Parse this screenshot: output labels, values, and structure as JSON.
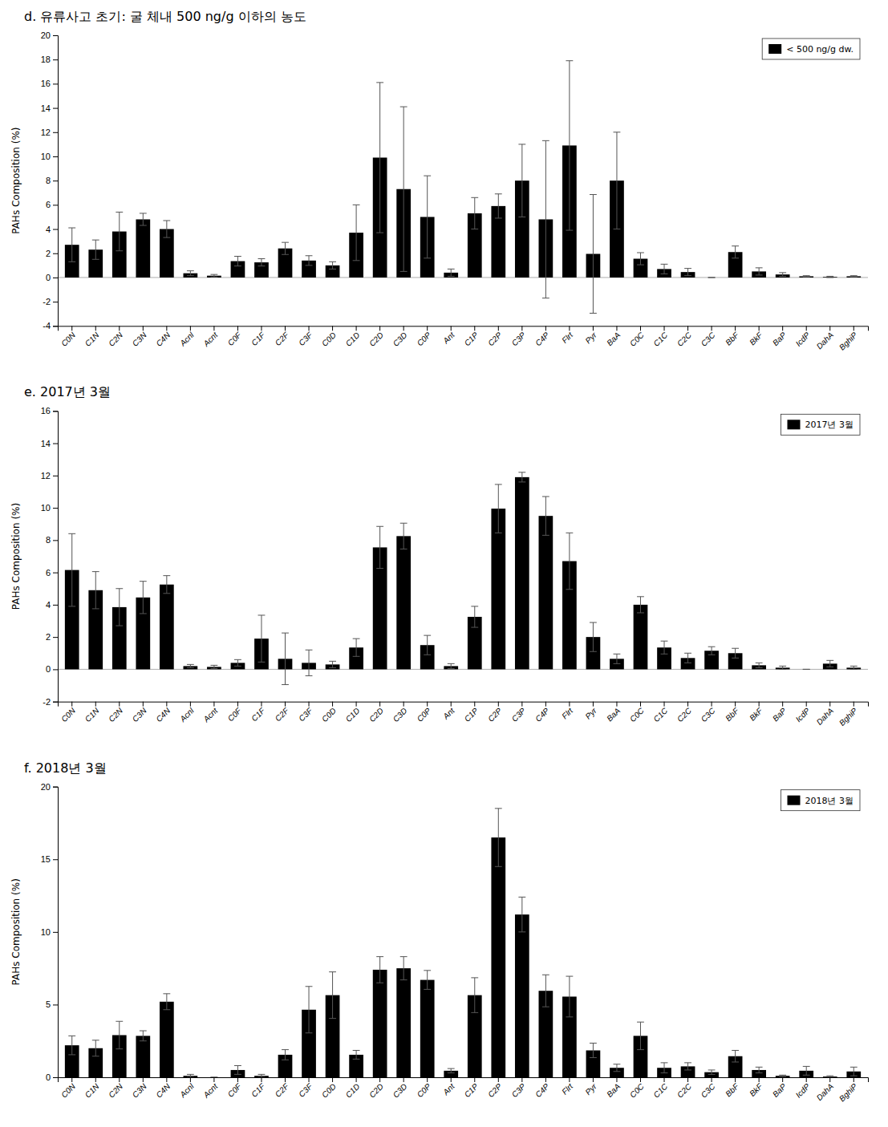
{
  "chart_data": [
    {
      "type": "bar",
      "title": "d. 유류사고 초기: 굴 체내 500 ng/g 이하의 농도",
      "ylabel": "PAHs Composition (%)",
      "categories": [
        "C0N",
        "C1N",
        "C2N",
        "C3N",
        "C4N",
        "Acnl",
        "Acnt",
        "C0F",
        "C1F",
        "C2F",
        "C3F",
        "C0D",
        "C1D",
        "C2D",
        "C3D",
        "C0P",
        "Ant",
        "C1P",
        "C2P",
        "C3P",
        "C4P",
        "Flrt",
        "Pyr",
        "BaA",
        "C0C",
        "C1C",
        "C2C",
        "C3C",
        "BbF",
        "BkF",
        "BaP",
        "IcdP",
        "DahA",
        "BghiP"
      ],
      "series": [
        {
          "name": "< 500 ng/g dw.",
          "color": "#000000",
          "values": [
            2.7,
            2.3,
            3.8,
            4.8,
            4.0,
            0.35,
            0.15,
            1.35,
            1.25,
            2.4,
            1.4,
            1.0,
            3.7,
            9.9,
            7.3,
            5.0,
            0.4,
            5.3,
            5.9,
            8.0,
            4.8,
            10.9,
            1.95,
            8.0,
            1.55,
            0.7,
            0.45,
            0.0,
            2.1,
            0.5,
            0.25,
            0.1,
            0.05,
            0.1
          ],
          "errors": [
            1.4,
            0.8,
            1.6,
            0.5,
            0.7,
            0.2,
            0.1,
            0.4,
            0.3,
            0.5,
            0.4,
            0.3,
            2.3,
            6.2,
            6.8,
            3.4,
            0.3,
            1.3,
            1.0,
            3.0,
            6.5,
            7.0,
            4.9,
            4.0,
            0.5,
            0.4,
            0.3,
            0.0,
            0.5,
            0.3,
            0.15,
            0.05,
            0.05,
            0.05
          ]
        }
      ],
      "ylim": [
        -4,
        20
      ],
      "yticks": [
        -4,
        -2,
        0,
        2,
        4,
        6,
        8,
        10,
        12,
        14,
        16,
        18,
        20
      ],
      "legend": "upper right",
      "grid": false
    },
    {
      "type": "bar",
      "title": "e. 2017년 3월",
      "ylabel": "PAHs Composition (%)",
      "categories": [
        "C0N",
        "C1N",
        "C2N",
        "C3N",
        "C4N",
        "Acnl",
        "Acnt",
        "C0F",
        "C1F",
        "C2F",
        "C3F",
        "C0D",
        "C1D",
        "C2D",
        "C3D",
        "C0P",
        "Ant",
        "C1P",
        "C2P",
        "C3P",
        "C4P",
        "Flrt",
        "Pyr",
        "BaA",
        "C0C",
        "C1C",
        "C2C",
        "C3C",
        "BbF",
        "BkF",
        "BaP",
        "IcdP",
        "DahA",
        "BghiP"
      ],
      "series": [
        {
          "name": "2017년 3월",
          "color": "#000000",
          "values": [
            6.15,
            4.9,
            3.85,
            4.45,
            5.25,
            0.2,
            0.15,
            0.4,
            1.9,
            0.65,
            0.4,
            0.3,
            1.35,
            7.55,
            8.25,
            1.5,
            0.2,
            3.25,
            9.95,
            11.9,
            9.5,
            6.7,
            2.0,
            0.65,
            4.0,
            1.35,
            0.7,
            1.15,
            1.0,
            0.25,
            0.1,
            0.0,
            0.35,
            0.1
          ],
          "errors": [
            2.25,
            1.15,
            1.15,
            1.0,
            0.55,
            0.1,
            0.1,
            0.2,
            1.45,
            1.6,
            0.8,
            0.2,
            0.55,
            1.3,
            0.8,
            0.6,
            0.15,
            0.65,
            1.5,
            0.3,
            1.2,
            1.75,
            0.9,
            0.3,
            0.5,
            0.4,
            0.3,
            0.25,
            0.3,
            0.15,
            0.1,
            0.0,
            0.2,
            0.1
          ]
        }
      ],
      "ylim": [
        -2,
        16
      ],
      "yticks": [
        -2,
        0,
        2,
        4,
        6,
        8,
        10,
        12,
        14,
        16
      ],
      "legend": "upper right",
      "grid": false
    },
    {
      "type": "bar",
      "title": "f. 2018년 3월",
      "ylabel": "PAHs Composition (%)",
      "categories": [
        "C0N",
        "C1N",
        "C2N",
        "C3N",
        "C4N",
        "Acnl",
        "Acnt",
        "C0F",
        "C1F",
        "C2F",
        "C3F",
        "C0D",
        "C1D",
        "C2D",
        "C3D",
        "C0P",
        "Ant",
        "C1P",
        "C2P",
        "C3P",
        "C4P",
        "Flrt",
        "Pyr",
        "BaA",
        "C0C",
        "C1C",
        "C2C",
        "C3C",
        "BbF",
        "BkF",
        "BaP",
        "IcdP",
        "DahA",
        "BghiP"
      ],
      "series": [
        {
          "name": "2018년 3월",
          "color": "#000000",
          "values": [
            2.2,
            2.0,
            2.9,
            2.85,
            5.2,
            0.1,
            0.0,
            0.5,
            0.1,
            1.55,
            4.65,
            5.65,
            1.55,
            7.4,
            7.5,
            6.7,
            0.45,
            5.65,
            16.5,
            11.2,
            5.95,
            5.55,
            1.85,
            0.65,
            2.85,
            0.65,
            0.75,
            0.35,
            1.45,
            0.5,
            0.1,
            0.45,
            0.05,
            0.4
          ],
          "errors": [
            0.65,
            0.55,
            0.95,
            0.35,
            0.55,
            0.1,
            0.0,
            0.3,
            0.1,
            0.35,
            1.6,
            1.6,
            0.3,
            0.9,
            0.8,
            0.65,
            0.15,
            1.2,
            2.0,
            1.2,
            1.1,
            1.4,
            0.5,
            0.25,
            0.95,
            0.35,
            0.25,
            0.15,
            0.4,
            0.2,
            0.05,
            0.3,
            0.05,
            0.3
          ]
        }
      ],
      "ylim": [
        0,
        20
      ],
      "yticks": [
        0,
        5,
        10,
        15,
        20
      ],
      "legend": "upper right",
      "grid": false
    }
  ]
}
